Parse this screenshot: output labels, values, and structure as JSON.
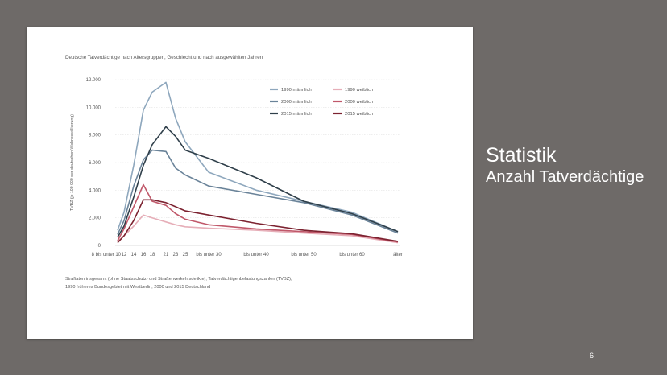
{
  "slide": {
    "title": "Statistik",
    "subtitle": "Anzahl Tatverdächtige",
    "page_number": "6"
  },
  "chart_data": {
    "type": "line",
    "title": "Deutsche Tatverdächtige nach Altersgruppen, Geschlecht und nach ausgewählten Jahren",
    "ylabel": "TVBZ (je 100 000 der deutschen Wohnbevölkerung)",
    "xlabel": "",
    "ylim": [
      0,
      12000
    ],
    "y_ticks": [
      {
        "value": 0,
        "label": "0"
      },
      {
        "value": 2000,
        "label": "2.000"
      },
      {
        "value": 4000,
        "label": "4.000"
      },
      {
        "value": 6000,
        "label": "6.000"
      },
      {
        "value": 8000,
        "label": "8.000"
      },
      {
        "value": 10000,
        "label": "10.000"
      },
      {
        "value": 12000,
        "label": "12.000"
      }
    ],
    "x_ticks": [
      {
        "index": 0,
        "label": "8 bis unter 10"
      },
      {
        "index": 1,
        "label": "12"
      },
      {
        "index": 2,
        "label": "14"
      },
      {
        "index": 3,
        "label": "16"
      },
      {
        "index": 4,
        "label": "18"
      },
      {
        "index": 5,
        "label": "21"
      },
      {
        "index": 6,
        "label": "23"
      },
      {
        "index": 7,
        "label": "25"
      },
      {
        "index": 8,
        "label": "bis unter 30"
      },
      {
        "index": 9,
        "label": "bis unter 40"
      },
      {
        "index": 10,
        "label": "bis unter 50"
      },
      {
        "index": 11,
        "label": "bis unter 60"
      },
      {
        "index": 12,
        "label": "älter"
      }
    ],
    "grid": true,
    "legend": "top-right",
    "series": [
      {
        "name": "1990 männlich",
        "color": "#8ea7bd",
        "values": [
          1100,
          2400,
          5800,
          9800,
          11100,
          11800,
          9200,
          7500,
          5300,
          4000,
          3200,
          2400,
          1000
        ]
      },
      {
        "name": "2000 männlich",
        "color": "#6a8399",
        "values": [
          800,
          1800,
          4300,
          6200,
          6900,
          6800,
          5600,
          5100,
          4300,
          3700,
          3100,
          2200,
          900
        ]
      },
      {
        "name": "2015 männlich",
        "color": "#2f3f4a",
        "values": [
          600,
          1400,
          3500,
          5800,
          7300,
          8600,
          7900,
          6900,
          6300,
          4900,
          3200,
          2300,
          1000
        ]
      },
      {
        "name": "1990 weiblich",
        "color": "#e6aeb8",
        "values": [
          300,
          700,
          1400,
          2200,
          2000,
          1700,
          1500,
          1350,
          1250,
          1100,
          900,
          700,
          200
        ]
      },
      {
        "name": "2000 weiblich",
        "color": "#c0586a",
        "values": [
          350,
          1200,
          2800,
          4400,
          3200,
          2900,
          2300,
          1900,
          1500,
          1200,
          1000,
          800,
          250
        ]
      },
      {
        "name": "2015 weiblich",
        "color": "#7c2230",
        "values": [
          200,
          700,
          1800,
          3300,
          3300,
          3100,
          2800,
          2500,
          2200,
          1600,
          1100,
          850,
          300
        ]
      }
    ]
  },
  "footnote": {
    "line1": "Straftaten insgesamt (ohne Staatsschutz- und Straßenverkehrsdelikte); Tatverdächtigenbelastungszahlen (TVBZ);",
    "line2": "1990 früheres Bundesgebiet mit Westberlin, 2000 und 2015 Deutschland"
  }
}
